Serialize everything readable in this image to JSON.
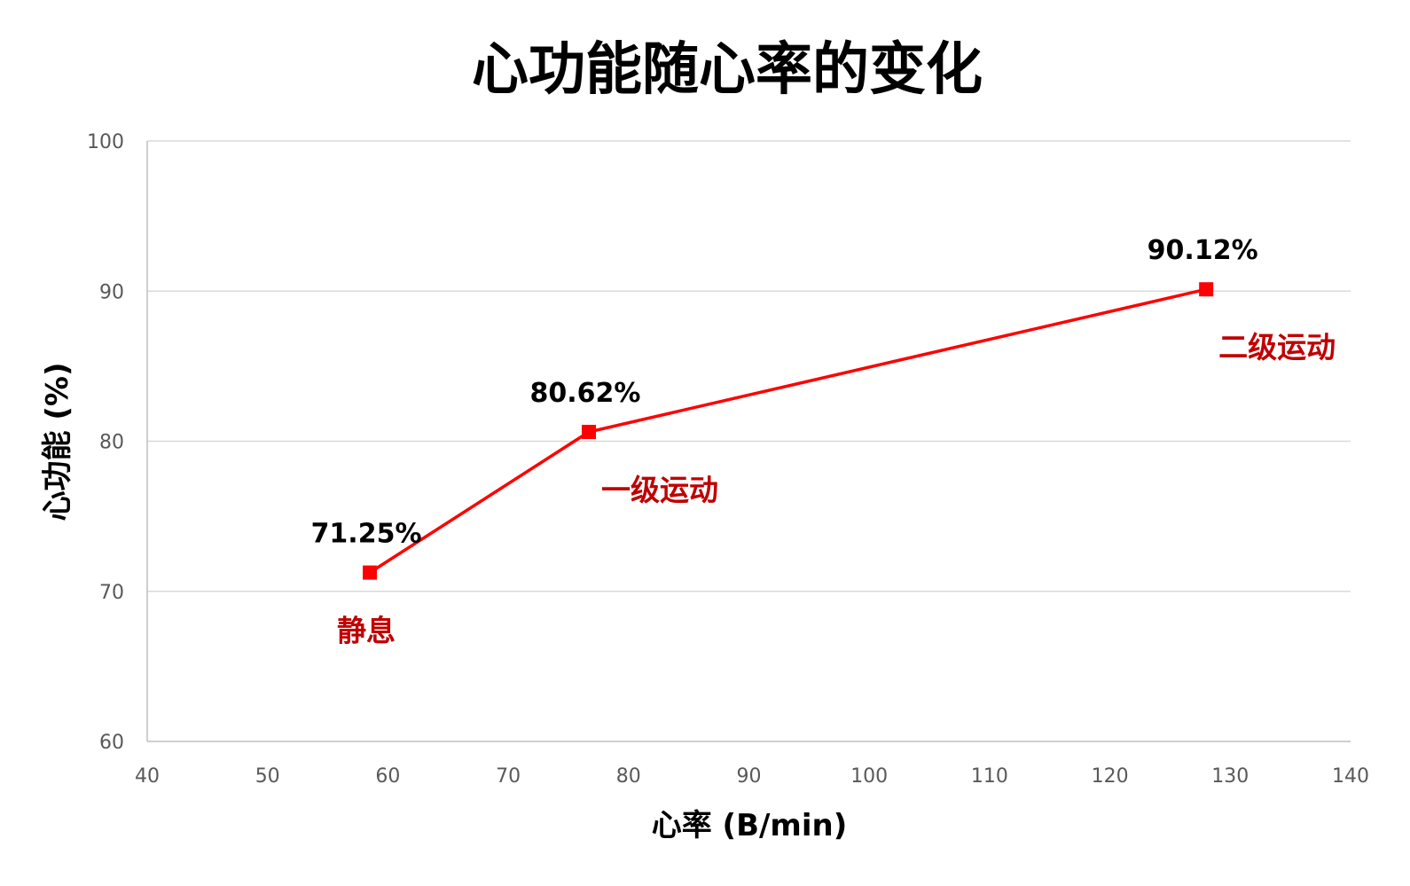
{
  "chart_data": {
    "type": "line",
    "title": "心功能随心率的变化",
    "xlabel": "心率 (B/min)",
    "ylabel": "心功能 (%)",
    "xlim": [
      40,
      140
    ],
    "ylim": [
      60,
      100
    ],
    "xticks": [
      "40",
      "50",
      "60",
      "70",
      "80",
      "90",
      "100",
      "110",
      "120",
      "130",
      "140"
    ],
    "yticks": [
      "60",
      "70",
      "80",
      "90",
      "100"
    ],
    "grid": "horizontal",
    "series": [
      {
        "color": "#ff0000",
        "marker": "square",
        "points": [
          {
            "x": 58.5,
            "y": 71.25,
            "value_label": "71.25%",
            "name": "静息"
          },
          {
            "x": 76.7,
            "y": 80.62,
            "value_label": "80.62%",
            "name": "一级运动"
          },
          {
            "x": 128,
            "y": 90.12,
            "value_label": "90.12%",
            "name": "二级运动"
          }
        ]
      }
    ],
    "colors": {
      "line": "#ff0000",
      "point_label": "#c00000",
      "value_label": "#000000"
    }
  }
}
